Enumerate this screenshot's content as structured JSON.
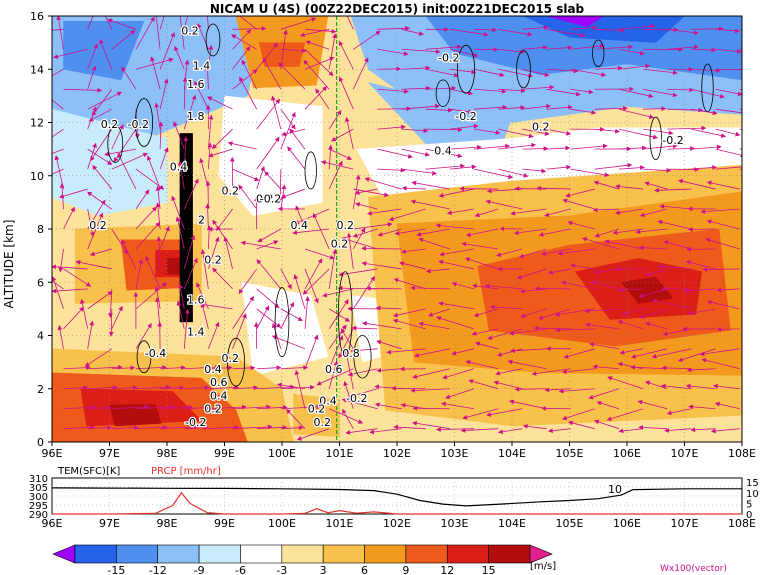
{
  "chart_data": [
    {
      "type": "heatmap",
      "title": "NICAM  U (4S) (00Z22DEC2015) init:00Z21DEC2015 slab",
      "ylabel": "ALTITUDE [km]",
      "x_ticks": [
        "96E",
        "97E",
        "98E",
        "99E",
        "100E",
        "101E",
        "102E",
        "103E",
        "104E",
        "105E",
        "106E",
        "107E",
        "108E"
      ],
      "y_ticks": [
        "0",
        "2",
        "4",
        "6",
        "8",
        "10",
        "12",
        "14",
        "16"
      ],
      "xlim": [
        96,
        108
      ],
      "ylim": [
        0,
        16
      ],
      "units": "[m/s]",
      "vector_label": "Wx100(vector)",
      "colorbar": {
        "labels": [
          "-15",
          "-12",
          "-9",
          "-6",
          "-3",
          "3",
          "6",
          "9",
          "12",
          "15"
        ],
        "colors": [
          "#9f00ff",
          "#2563e8",
          "#4e8ff0",
          "#8cc0f6",
          "#c8ecfa",
          "#ffffff",
          "#fde29a",
          "#f8c14b",
          "#f39a1e",
          "#ee5a1a",
          "#dc1f16",
          "#b30d0d",
          "#e0208e"
        ]
      },
      "contour_labels": [
        "0.2",
        "0.2",
        "0.4",
        "-0.2",
        "-0.2",
        "0.2",
        "0.4",
        "0.2",
        "0.2",
        "-0.2",
        "0.2",
        "-0.2",
        "0.4",
        "0.2",
        "-0.2",
        "0.2",
        "1.4",
        "1.6",
        "1.8",
        "2",
        "0.2",
        "1.6",
        "1.4",
        "-0.4",
        "0.2",
        "0.4",
        "0.6",
        "0.4",
        "0.2",
        "0.8",
        "0.6",
        "0.4",
        "-0.2",
        "0.2",
        "-0.2",
        "0.2"
      ]
    },
    {
      "type": "line",
      "legend": [
        "TEM(SFC)[K]",
        "PRCP [mm/hr]"
      ],
      "left_ticks": [
        "310",
        "305",
        "300",
        "295",
        "290"
      ],
      "right_ticks": [
        "15",
        "10",
        "5",
        "0"
      ],
      "x_ticks": [
        "96E",
        "97E",
        "98E",
        "99E",
        "100E",
        "101E",
        "102E",
        "103E",
        "104E",
        "105E",
        "106E",
        "107E",
        "108E"
      ],
      "tem_ylim": [
        290,
        310
      ],
      "prcp_ylim": [
        0,
        17
      ],
      "series": [
        {
          "name": "TEM(SFC)[K]",
          "color": "#000000",
          "x": [
            96,
            97,
            98,
            99,
            100,
            101,
            101.6,
            102,
            102.4,
            102.8,
            103.2,
            103.8,
            104.5,
            105,
            105.5,
            105.9,
            106.1,
            107,
            108
          ],
          "values": [
            304.5,
            304.4,
            304.3,
            304.2,
            304,
            303.6,
            303,
            301,
            297.5,
            295.5,
            294.5,
            295.5,
            296.8,
            297.5,
            298.5,
            300.5,
            303.5,
            304,
            304
          ]
        },
        {
          "name": "PRCP [mm/hr]",
          "color": "#e8332b",
          "x": [
            96,
            97,
            97.8,
            98.1,
            98.25,
            98.4,
            98.7,
            99,
            100,
            100.4,
            100.6,
            100.8,
            101,
            101.3,
            101.6,
            102,
            103,
            104,
            105,
            106,
            107,
            108
          ],
          "values": [
            0,
            0,
            0.3,
            4,
            10,
            5,
            0.6,
            0,
            0,
            0.3,
            2.5,
            0.6,
            1.6,
            0.4,
            1,
            0,
            0,
            0,
            0,
            0,
            0,
            0
          ]
        }
      ],
      "annotations": [
        "10"
      ]
    }
  ]
}
